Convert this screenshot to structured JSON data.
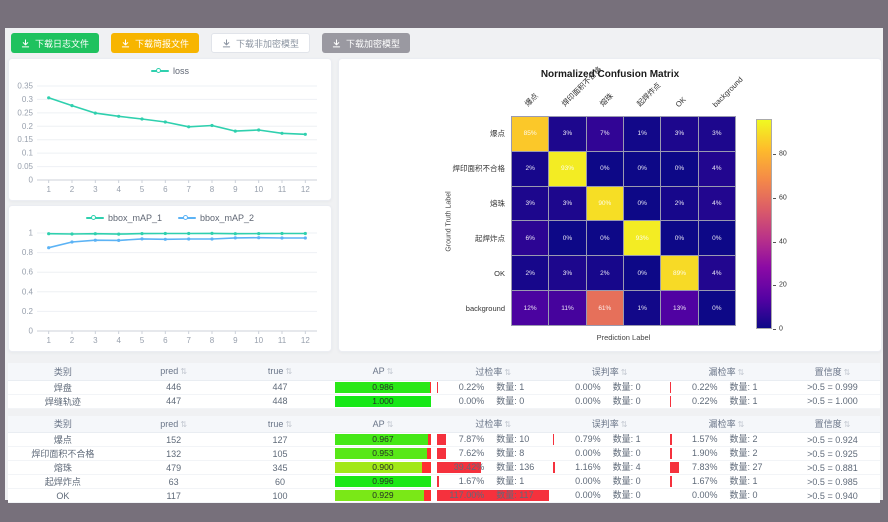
{
  "toolbar": {
    "buttons": [
      {
        "label": "下载日志文件",
        "variant": "green"
      },
      {
        "label": "下载简报文件",
        "variant": "orange"
      },
      {
        "label": "下载非加密模型",
        "variant": "plain"
      },
      {
        "label": "下载加密模型",
        "variant": "dark"
      }
    ]
  },
  "chart_data": [
    {
      "id": "loss-chart",
      "type": "line",
      "x": [
        1,
        2,
        3,
        4,
        5,
        6,
        7,
        8,
        9,
        10,
        11,
        12
      ],
      "series": [
        {
          "name": "loss",
          "color": "#2fd0ae",
          "values": [
            0.306,
            0.277,
            0.249,
            0.237,
            0.227,
            0.216,
            0.198,
            0.203,
            0.182,
            0.186,
            0.174,
            0.17
          ]
        }
      ],
      "ylim": [
        0,
        0.35
      ],
      "yticks": [
        0,
        0.05,
        0.1,
        0.15,
        0.2,
        0.25,
        0.3,
        0.35
      ],
      "legend_position": "top",
      "grid": true
    },
    {
      "id": "map-chart",
      "type": "line",
      "x": [
        1,
        2,
        3,
        4,
        5,
        6,
        7,
        8,
        9,
        10,
        11,
        12
      ],
      "series": [
        {
          "name": "bbox_mAP_1",
          "color": "#2fd0ae",
          "values": [
            0.993,
            0.99,
            0.993,
            0.989,
            0.994,
            0.995,
            0.995,
            0.996,
            0.993,
            0.994,
            0.995,
            0.995
          ]
        },
        {
          "name": "bbox_mAP_2",
          "color": "#5cb3f5",
          "values": [
            0.85,
            0.908,
            0.927,
            0.924,
            0.94,
            0.936,
            0.939,
            0.939,
            0.95,
            0.952,
            0.949,
            0.949
          ]
        }
      ],
      "ylim": [
        0,
        1
      ],
      "yticks": [
        0,
        0.2,
        0.4,
        0.6,
        0.8,
        1
      ],
      "legend_position": "top",
      "grid": true
    },
    {
      "id": "confusion-matrix",
      "type": "heatmap",
      "title": "Normalized Confusion Matrix",
      "xlabel": "Prediction Label",
      "ylabel": "Ground Truth Label",
      "labels": [
        "爆点",
        "焊印面积不合格",
        "熔珠",
        "起焊炸点",
        "OK",
        "background"
      ],
      "matrix_percent": [
        [
          85,
          3,
          7,
          1,
          3,
          3
        ],
        [
          2,
          93,
          0,
          0,
          0,
          4
        ],
        [
          3,
          3,
          90,
          0,
          2,
          4
        ],
        [
          6,
          0,
          0,
          93,
          0,
          0
        ],
        [
          2,
          3,
          2,
          0,
          89,
          4
        ],
        [
          12,
          11,
          61,
          1,
          13,
          0
        ]
      ],
      "colormap": "plasma",
      "vmax": 96,
      "colorbar_ticks": [
        0,
        20,
        40,
        60,
        80
      ]
    }
  ],
  "tables": [
    {
      "columns": [
        {
          "key": "cls",
          "label": "类别",
          "sortable": false
        },
        {
          "key": "pred",
          "label": "pred",
          "sortable": true
        },
        {
          "key": "true",
          "label": "true",
          "sortable": true
        },
        {
          "key": "ap",
          "label": "AP",
          "sortable": true
        },
        {
          "key": "over",
          "label": "过检率",
          "sortable": true
        },
        {
          "key": "mis",
          "label": "误判率",
          "sortable": true
        },
        {
          "key": "miss",
          "label": "漏检率",
          "sortable": true
        },
        {
          "key": "conf",
          "label": "置信度",
          "sortable": true
        }
      ],
      "rows": [
        {
          "cls": "焊盘",
          "pred": "446",
          "true": "447",
          "ap": "0.986",
          "over": {
            "pct": "0.22%",
            "count": "数量: 1"
          },
          "mis": {
            "pct": "0.00%",
            "count": "数量: 0"
          },
          "miss": {
            "pct": "0.22%",
            "count": "数量: 1"
          },
          "conf": ">0.5 = 0.999"
        },
        {
          "cls": "焊缝轨迹",
          "pred": "447",
          "true": "448",
          "ap": "1.000",
          "over": {
            "pct": "0.00%",
            "count": "数量: 0"
          },
          "mis": {
            "pct": "0.00%",
            "count": "数量: 0"
          },
          "miss": {
            "pct": "0.22%",
            "count": "数量: 1"
          },
          "conf": ">0.5 = 1.000"
        }
      ]
    },
    {
      "columns": [
        {
          "key": "cls",
          "label": "类别",
          "sortable": false
        },
        {
          "key": "pred",
          "label": "pred",
          "sortable": true
        },
        {
          "key": "true",
          "label": "true",
          "sortable": true
        },
        {
          "key": "ap",
          "label": "AP",
          "sortable": true
        },
        {
          "key": "over",
          "label": "过检率",
          "sortable": true
        },
        {
          "key": "mis",
          "label": "误判率",
          "sortable": true
        },
        {
          "key": "miss",
          "label": "漏检率",
          "sortable": true
        },
        {
          "key": "conf",
          "label": "置信度",
          "sortable": true
        }
      ],
      "rows": [
        {
          "cls": "爆点",
          "pred": "152",
          "true": "127",
          "ap": "0.967",
          "over": {
            "pct": "7.87%",
            "count": "数量: 10"
          },
          "mis": {
            "pct": "0.79%",
            "count": "数量: 1"
          },
          "miss": {
            "pct": "1.57%",
            "count": "数量: 2"
          },
          "conf": ">0.5 = 0.924"
        },
        {
          "cls": "焊印面积不合格",
          "pred": "132",
          "true": "105",
          "ap": "0.953",
          "over": {
            "pct": "7.62%",
            "count": "数量: 8"
          },
          "mis": {
            "pct": "0.00%",
            "count": "数量: 0"
          },
          "miss": {
            "pct": "1.90%",
            "count": "数量: 2"
          },
          "conf": ">0.5 = 0.925"
        },
        {
          "cls": "熔珠",
          "pred": "479",
          "true": "345",
          "ap": "0.900",
          "over": {
            "pct": "39.42%",
            "count": "数量: 136"
          },
          "mis": {
            "pct": "1.16%",
            "count": "数量: 4"
          },
          "miss": {
            "pct": "7.83%",
            "count": "数量: 27"
          },
          "conf": ">0.5 = 0.881"
        },
        {
          "cls": "起焊炸点",
          "pred": "63",
          "true": "60",
          "ap": "0.996",
          "over": {
            "pct": "1.67%",
            "count": "数量: 1"
          },
          "mis": {
            "pct": "0.00%",
            "count": "数量: 0"
          },
          "miss": {
            "pct": "1.67%",
            "count": "数量: 1"
          },
          "conf": ">0.5 = 0.985"
        },
        {
          "cls": "OK",
          "pred": "117",
          "true": "100",
          "ap": "0.929",
          "over": {
            "pct": "117.00%",
            "count": "数量: 117"
          },
          "mis": {
            "pct": "0.00%",
            "count": "数量: 0"
          },
          "miss": {
            "pct": "0.00%",
            "count": "数量: 0"
          },
          "conf": ">0.5 = 0.940"
        }
      ]
    }
  ],
  "colors": {
    "accent_green": "#1fc25f",
    "accent_orange": "#f7b500",
    "dark_button": "#9a99a1",
    "series_teal": "#2fd0ae",
    "series_blue": "#5cb3f5",
    "rate_bar_red": "#f5313d",
    "ap_remainder_red": "#ff2f2f",
    "frame_gray": "#77707b"
  }
}
